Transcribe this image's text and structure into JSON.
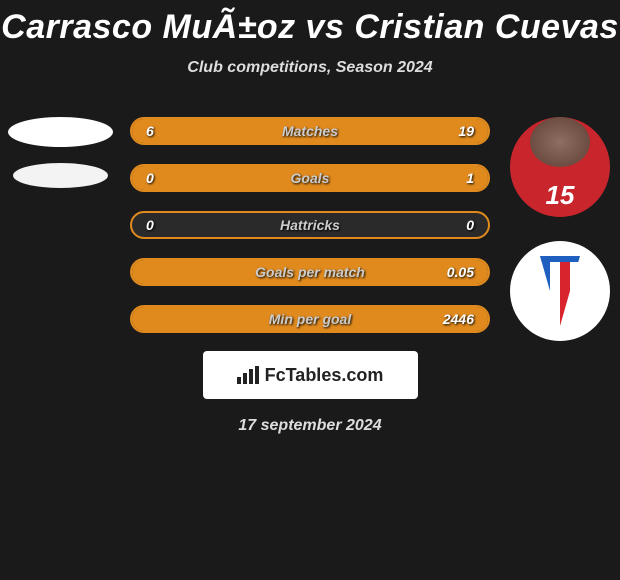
{
  "title": "Carrasco MuÃ±oz vs Cristian Cuevas",
  "subtitle": "Club competitions, Season 2024",
  "date": "17 september 2024",
  "logo_text": "FcTables.com",
  "player_right": {
    "jersey_number": "15"
  },
  "colors": {
    "accent": "#e08a1e",
    "bar_bg": "#2a2a2a",
    "text": "#ffffff",
    "avatar_white": "#ffffff",
    "player_shirt": "#c8252d",
    "club_badge_stripe_blue": "#1e5fbf",
    "club_badge_stripe_red": "#d8252d"
  },
  "stats": [
    {
      "label": "Matches",
      "left_value": "6",
      "right_value": "19",
      "left_pct": 24,
      "right_pct": 76
    },
    {
      "label": "Goals",
      "left_value": "0",
      "right_value": "1",
      "left_pct": 0,
      "right_pct": 100
    },
    {
      "label": "Hattricks",
      "left_value": "0",
      "right_value": "0",
      "left_pct": 0,
      "right_pct": 0
    },
    {
      "label": "Goals per match",
      "left_value": "",
      "right_value": "0.05",
      "left_pct": 0,
      "right_pct": 100
    },
    {
      "label": "Min per goal",
      "left_value": "",
      "right_value": "2446",
      "left_pct": 0,
      "right_pct": 100
    }
  ]
}
